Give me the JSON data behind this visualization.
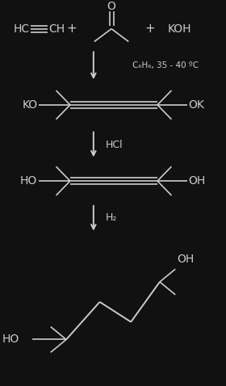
{
  "bg_color": "#111111",
  "line_color": "#cccccc",
  "text_color": "#cccccc",
  "figsize": [
    2.8,
    4.78
  ],
  "dpi": 100,
  "arrow_label1": "C₆H₆, 35 - 40 ºC",
  "arrow_label2": "HCl",
  "arrow_label3": "H₂"
}
